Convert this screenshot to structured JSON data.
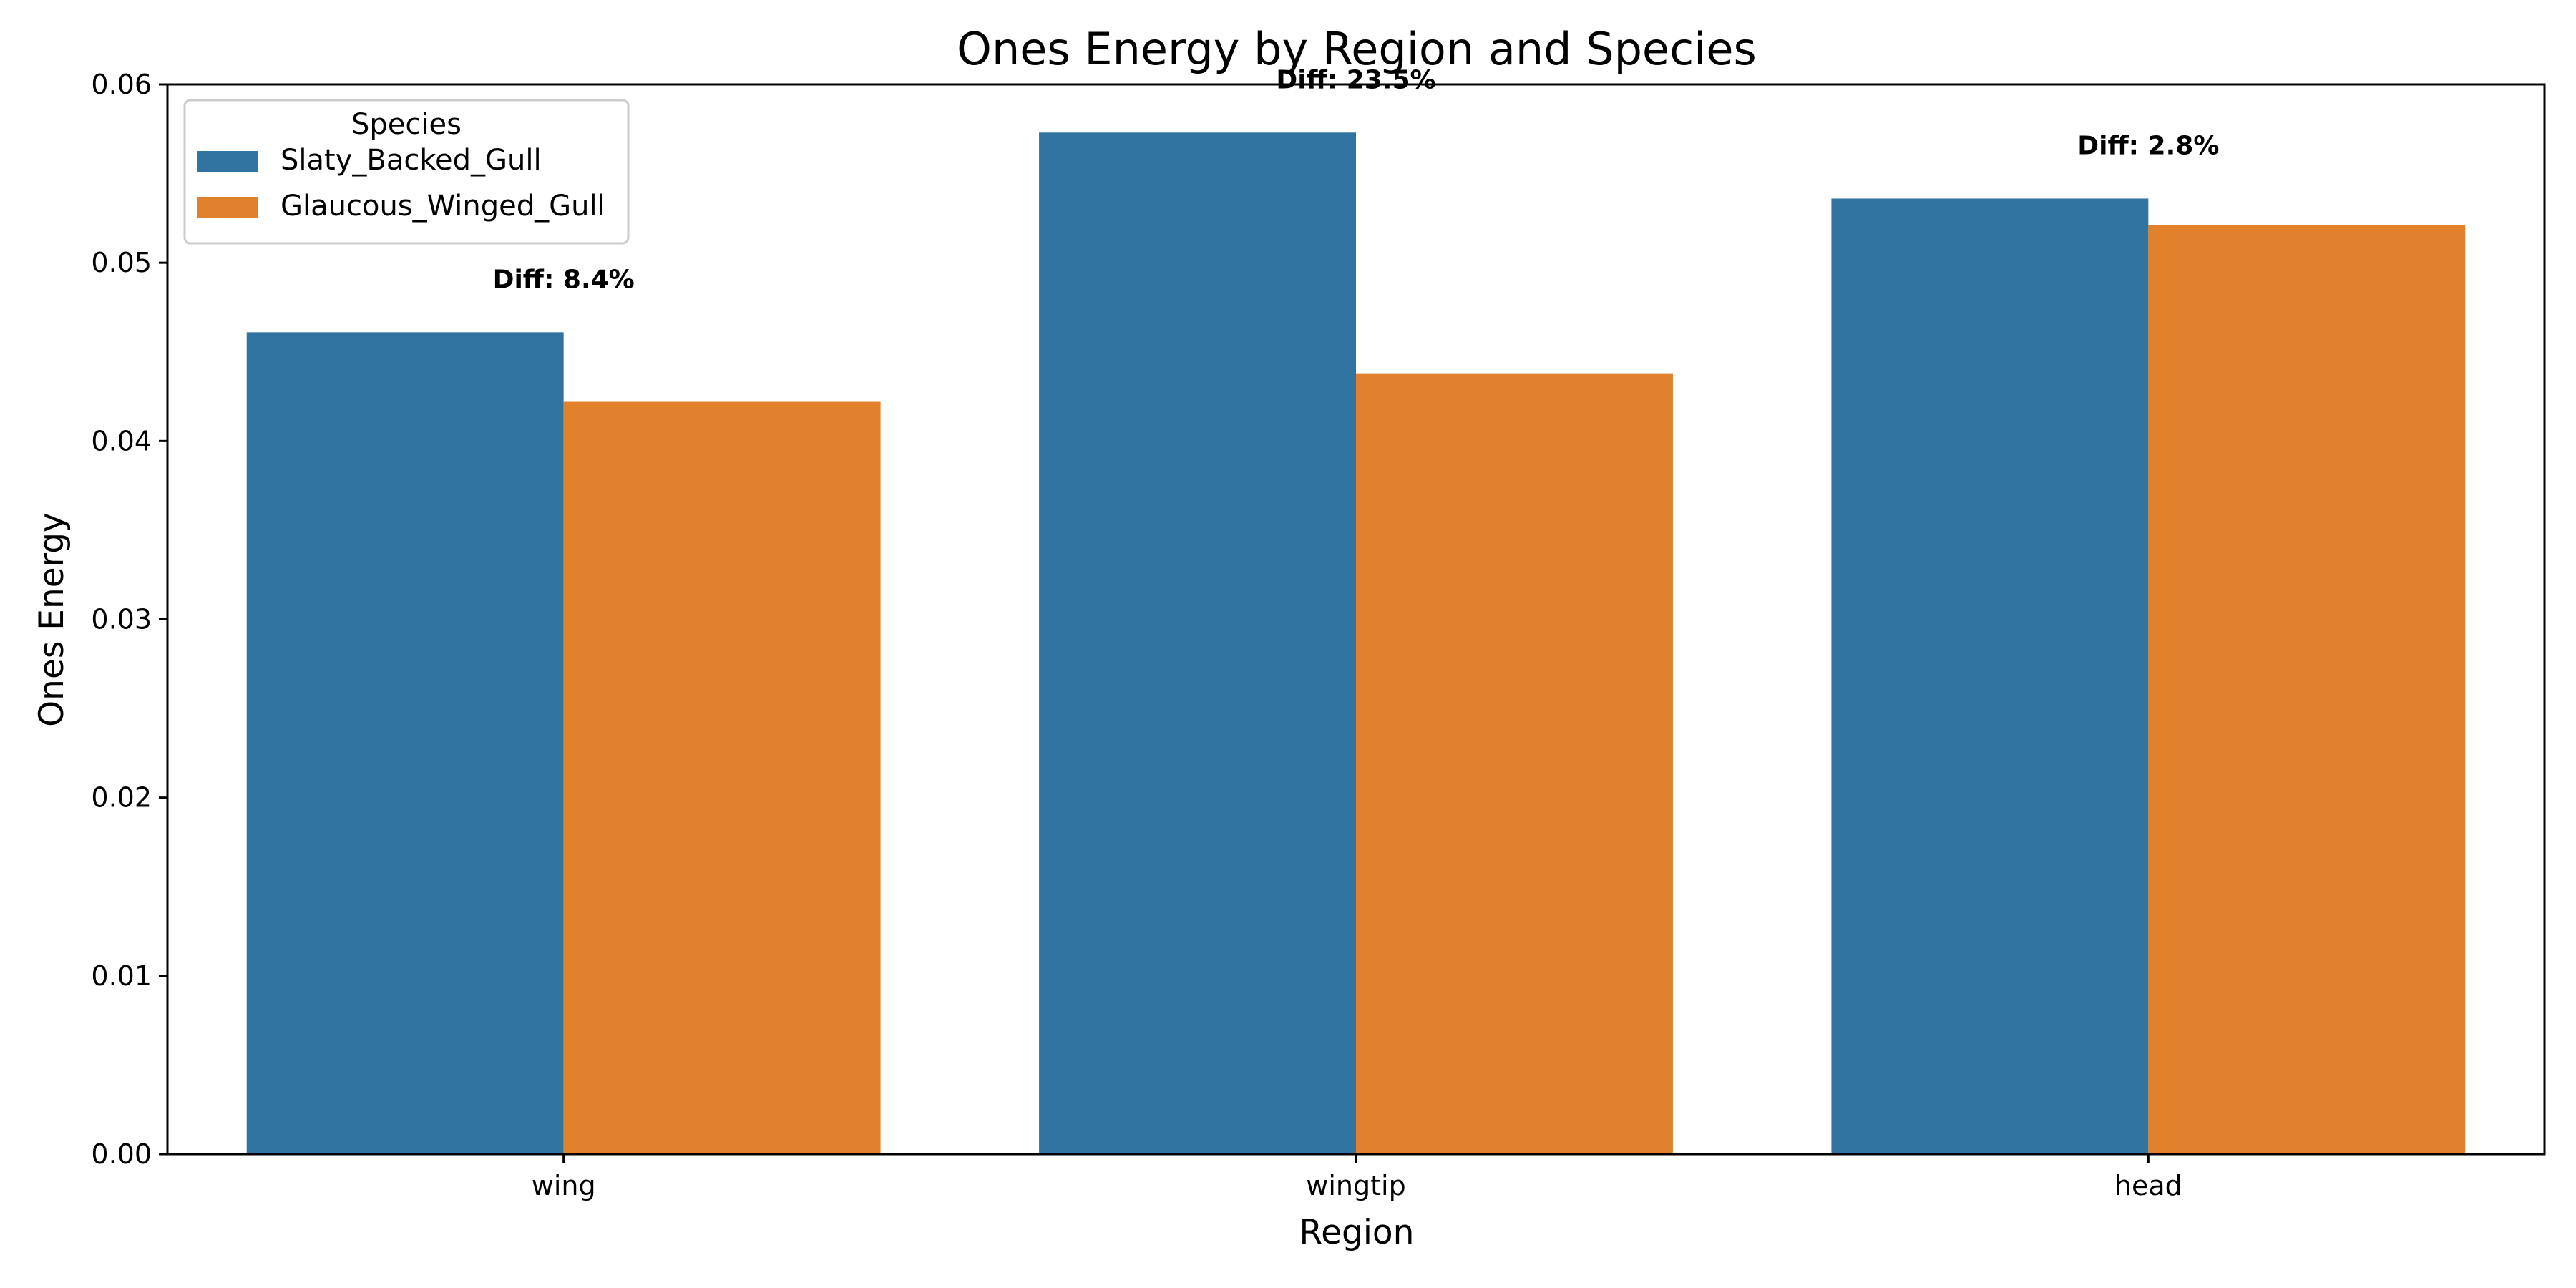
{
  "chart_data": {
    "type": "bar",
    "title": "Ones Energy by Region and Species",
    "xlabel": "Region",
    "ylabel": "Ones Energy",
    "categories": [
      "wing",
      "wingtip",
      "head"
    ],
    "series": [
      {
        "name": "Slaty_Backed_Gull",
        "color": "#3274a1",
        "values": [
          0.0461,
          0.0573,
          0.0536
        ]
      },
      {
        "name": "Glaucous_Winged_Gull",
        "color": "#e1812c",
        "values": [
          0.0422,
          0.0438,
          0.0521
        ]
      }
    ],
    "ylim": [
      0,
      0.06
    ],
    "yticks": [
      "0.00",
      "0.01",
      "0.02",
      "0.03",
      "0.04",
      "0.05",
      "0.06"
    ],
    "annotations": [
      "Diff: 8.4%",
      "Diff: 23.5%",
      "Diff: 2.8%"
    ],
    "legend": {
      "title": "Species",
      "position": "top-left"
    },
    "grid": false
  }
}
